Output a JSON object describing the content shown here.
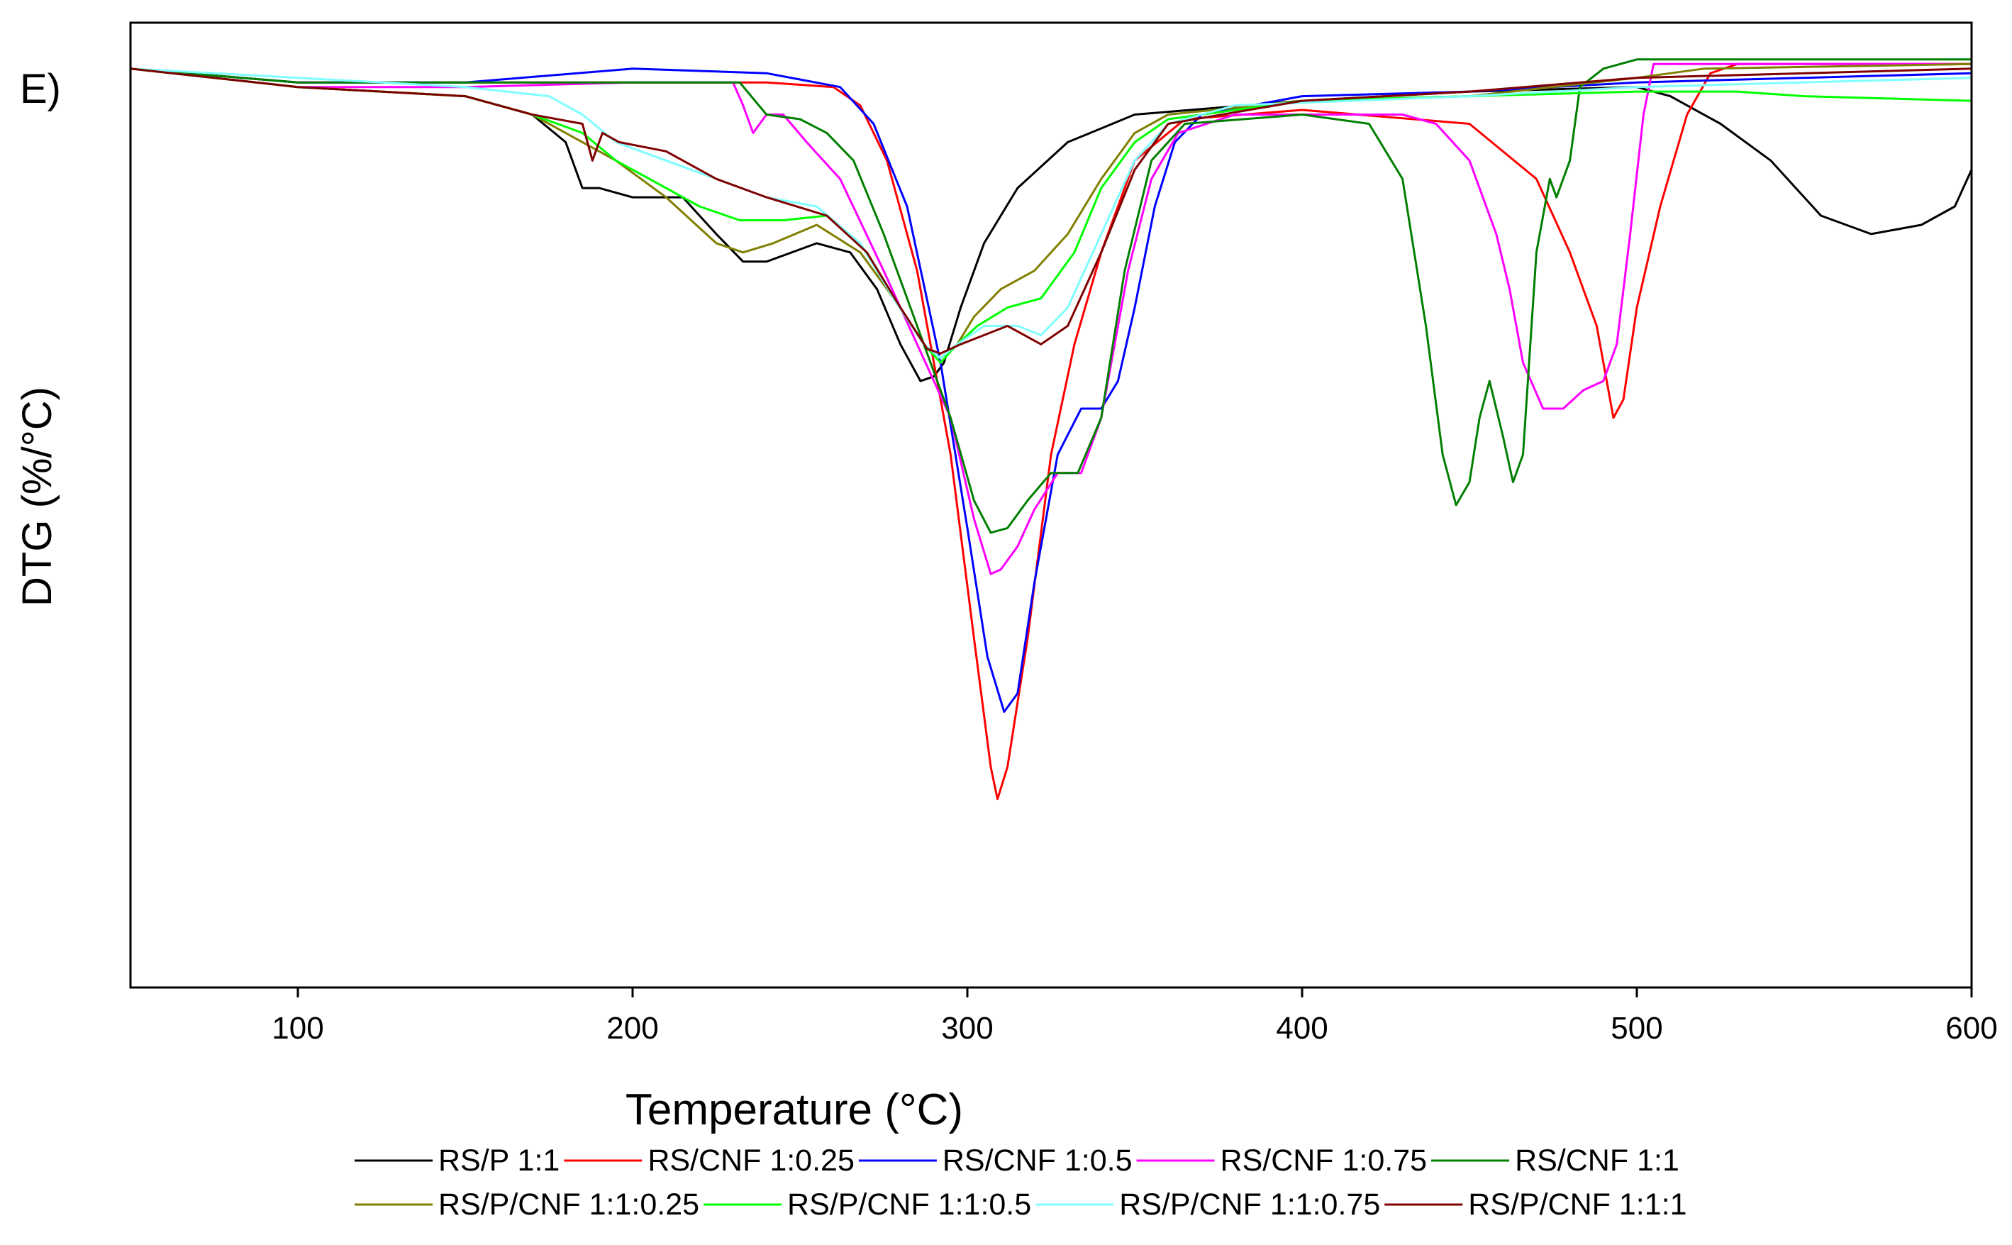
{
  "chart_data": {
    "type": "line",
    "panel_label": "E)",
    "title": "",
    "xlabel": "Temperature (°C)",
    "ylabel": "DTG (%/°C)",
    "xlim": [
      50,
      600
    ],
    "ylim": [
      -1.0,
      0.05
    ],
    "xticks": [
      100,
      200,
      300,
      400,
      500,
      600
    ],
    "y_tick_labels_shown": false,
    "grid": false,
    "legend_position": "bottom",
    "series": [
      {
        "name": "RS/P 1:1",
        "color": "#000000",
        "points": [
          [
            50,
            0
          ],
          [
            100,
            -0.02
          ],
          [
            150,
            -0.03
          ],
          [
            170,
            -0.05
          ],
          [
            180,
            -0.08
          ],
          [
            185,
            -0.13
          ],
          [
            190,
            -0.13
          ],
          [
            200,
            -0.14
          ],
          [
            215,
            -0.14
          ],
          [
            225,
            -0.18
          ],
          [
            233,
            -0.21
          ],
          [
            240,
            -0.21
          ],
          [
            255,
            -0.19
          ],
          [
            265,
            -0.2
          ],
          [
            273,
            -0.24
          ],
          [
            280,
            -0.3
          ],
          [
            286,
            -0.34
          ],
          [
            290,
            -0.335
          ],
          [
            293,
            -0.32
          ],
          [
            298,
            -0.26
          ],
          [
            305,
            -0.19
          ],
          [
            315,
            -0.13
          ],
          [
            330,
            -0.08
          ],
          [
            350,
            -0.05
          ],
          [
            400,
            -0.035
          ],
          [
            450,
            -0.025
          ],
          [
            500,
            -0.02
          ],
          [
            510,
            -0.03
          ],
          [
            525,
            -0.06
          ],
          [
            540,
            -0.1
          ],
          [
            555,
            -0.16
          ],
          [
            570,
            -0.18
          ],
          [
            585,
            -0.17
          ],
          [
            595,
            -0.15
          ],
          [
            600,
            -0.11
          ]
        ]
      },
      {
        "name": "RS/CNF 1:0.25",
        "color": "#ff0000",
        "points": [
          [
            50,
            0
          ],
          [
            100,
            -0.015
          ],
          [
            150,
            -0.015
          ],
          [
            200,
            -0.015
          ],
          [
            240,
            -0.015
          ],
          [
            260,
            -0.02
          ],
          [
            268,
            -0.04
          ],
          [
            276,
            -0.1
          ],
          [
            285,
            -0.22
          ],
          [
            295,
            -0.42
          ],
          [
            302,
            -0.62
          ],
          [
            307,
            -0.76
          ],
          [
            309,
            -0.795
          ],
          [
            312,
            -0.76
          ],
          [
            318,
            -0.62
          ],
          [
            325,
            -0.42
          ],
          [
            332,
            -0.3
          ],
          [
            340,
            -0.2
          ],
          [
            350,
            -0.1
          ],
          [
            365,
            -0.055
          ],
          [
            400,
            -0.045
          ],
          [
            450,
            -0.06
          ],
          [
            470,
            -0.12
          ],
          [
            480,
            -0.2
          ],
          [
            488,
            -0.28
          ],
          [
            493,
            -0.38
          ],
          [
            496,
            -0.36
          ],
          [
            500,
            -0.26
          ],
          [
            507,
            -0.15
          ],
          [
            515,
            -0.05
          ],
          [
            522,
            -0.005
          ],
          [
            530,
            0.005
          ],
          [
            600,
            0.005
          ]
        ]
      },
      {
        "name": "RS/CNF 1:0.5",
        "color": "#0000ff",
        "points": [
          [
            50,
            0
          ],
          [
            100,
            -0.015
          ],
          [
            150,
            -0.015
          ],
          [
            200,
            0
          ],
          [
            240,
            -0.005
          ],
          [
            262,
            -0.02
          ],
          [
            272,
            -0.06
          ],
          [
            282,
            -0.15
          ],
          [
            292,
            -0.32
          ],
          [
            300,
            -0.5
          ],
          [
            306,
            -0.64
          ],
          [
            311,
            -0.7
          ],
          [
            315,
            -0.68
          ],
          [
            320,
            -0.56
          ],
          [
            327,
            -0.42
          ],
          [
            334,
            -0.37
          ],
          [
            340,
            -0.37
          ],
          [
            345,
            -0.34
          ],
          [
            350,
            -0.26
          ],
          [
            356,
            -0.15
          ],
          [
            362,
            -0.08
          ],
          [
            370,
            -0.05
          ],
          [
            400,
            -0.03
          ],
          [
            450,
            -0.025
          ],
          [
            500,
            -0.015
          ],
          [
            550,
            -0.01
          ],
          [
            600,
            -0.005
          ]
        ]
      },
      {
        "name": "RS/CNF 1:0.75",
        "color": "#ff00ff",
        "points": [
          [
            50,
            0
          ],
          [
            100,
            -0.02
          ],
          [
            150,
            -0.02
          ],
          [
            200,
            -0.015
          ],
          [
            230,
            -0.015
          ],
          [
            233,
            -0.04
          ],
          [
            236,
            -0.07
          ],
          [
            240,
            -0.05
          ],
          [
            245,
            -0.05
          ],
          [
            252,
            -0.08
          ],
          [
            262,
            -0.12
          ],
          [
            275,
            -0.22
          ],
          [
            285,
            -0.3
          ],
          [
            295,
            -0.38
          ],
          [
            302,
            -0.49
          ],
          [
            307,
            -0.55
          ],
          [
            310,
            -0.545
          ],
          [
            315,
            -0.52
          ],
          [
            320,
            -0.48
          ],
          [
            327,
            -0.44
          ],
          [
            334,
            -0.44
          ],
          [
            340,
            -0.38
          ],
          [
            348,
            -0.22
          ],
          [
            355,
            -0.12
          ],
          [
            363,
            -0.07
          ],
          [
            380,
            -0.05
          ],
          [
            430,
            -0.05
          ],
          [
            440,
            -0.06
          ],
          [
            450,
            -0.1
          ],
          [
            458,
            -0.18
          ],
          [
            462,
            -0.24
          ],
          [
            466,
            -0.32
          ],
          [
            472,
            -0.37
          ],
          [
            478,
            -0.37
          ],
          [
            484,
            -0.35
          ],
          [
            490,
            -0.34
          ],
          [
            494,
            -0.3
          ],
          [
            498,
            -0.18
          ],
          [
            502,
            -0.05
          ],
          [
            505,
            0.005
          ],
          [
            550,
            0.005
          ],
          [
            600,
            0.005
          ]
        ]
      },
      {
        "name": "RS/CNF 1:1",
        "color": "#007f00",
        "points": [
          [
            50,
            0
          ],
          [
            100,
            -0.015
          ],
          [
            150,
            -0.015
          ],
          [
            200,
            -0.015
          ],
          [
            232,
            -0.015
          ],
          [
            240,
            -0.05
          ],
          [
            250,
            -0.055
          ],
          [
            258,
            -0.07
          ],
          [
            266,
            -0.1
          ],
          [
            275,
            -0.18
          ],
          [
            285,
            -0.28
          ],
          [
            295,
            -0.38
          ],
          [
            302,
            -0.47
          ],
          [
            307,
            -0.505
          ],
          [
            312,
            -0.5
          ],
          [
            318,
            -0.47
          ],
          [
            325,
            -0.44
          ],
          [
            333,
            -0.44
          ],
          [
            340,
            -0.38
          ],
          [
            347,
            -0.22
          ],
          [
            355,
            -0.1
          ],
          [
            365,
            -0.06
          ],
          [
            400,
            -0.05
          ],
          [
            420,
            -0.06
          ],
          [
            430,
            -0.12
          ],
          [
            437,
            -0.28
          ],
          [
            442,
            -0.42
          ],
          [
            446,
            -0.475
          ],
          [
            450,
            -0.45
          ],
          [
            453,
            -0.38
          ],
          [
            456,
            -0.34
          ],
          [
            460,
            -0.4
          ],
          [
            463,
            -0.45
          ],
          [
            466,
            -0.42
          ],
          [
            470,
            -0.2
          ],
          [
            474,
            -0.12
          ],
          [
            476,
            -0.14
          ],
          [
            480,
            -0.1
          ],
          [
            483,
            -0.02
          ],
          [
            490,
            0
          ],
          [
            500,
            0.01
          ],
          [
            520,
            0.01
          ],
          [
            600,
            0.01
          ]
        ]
      },
      {
        "name": "RS/P/CNF 1:1:0.25",
        "color": "#807f00",
        "points": [
          [
            50,
            0
          ],
          [
            100,
            -0.02
          ],
          [
            150,
            -0.03
          ],
          [
            170,
            -0.05
          ],
          [
            180,
            -0.07
          ],
          [
            195,
            -0.1
          ],
          [
            210,
            -0.14
          ],
          [
            225,
            -0.19
          ],
          [
            233,
            -0.2
          ],
          [
            242,
            -0.19
          ],
          [
            255,
            -0.17
          ],
          [
            268,
            -0.2
          ],
          [
            278,
            -0.25
          ],
          [
            287,
            -0.3
          ],
          [
            292,
            -0.315
          ],
          [
            297,
            -0.3
          ],
          [
            302,
            -0.27
          ],
          [
            310,
            -0.24
          ],
          [
            320,
            -0.22
          ],
          [
            330,
            -0.18
          ],
          [
            340,
            -0.12
          ],
          [
            350,
            -0.07
          ],
          [
            360,
            -0.05
          ],
          [
            400,
            -0.035
          ],
          [
            450,
            -0.03
          ],
          [
            500,
            -0.01
          ],
          [
            520,
            0
          ],
          [
            600,
            0.005
          ]
        ]
      },
      {
        "name": "RS/P/CNF 1:1:0.5",
        "color": "#00ff00",
        "points": [
          [
            50,
            0
          ],
          [
            100,
            -0.02
          ],
          [
            150,
            -0.03
          ],
          [
            170,
            -0.05
          ],
          [
            185,
            -0.07
          ],
          [
            195,
            -0.1
          ],
          [
            205,
            -0.12
          ],
          [
            220,
            -0.15
          ],
          [
            232,
            -0.165
          ],
          [
            245,
            -0.165
          ],
          [
            258,
            -0.16
          ],
          [
            268,
            -0.19
          ],
          [
            278,
            -0.25
          ],
          [
            287,
            -0.3
          ],
          [
            292,
            -0.32
          ],
          [
            297,
            -0.3
          ],
          [
            303,
            -0.28
          ],
          [
            312,
            -0.26
          ],
          [
            322,
            -0.25
          ],
          [
            332,
            -0.2
          ],
          [
            340,
            -0.13
          ],
          [
            350,
            -0.08
          ],
          [
            360,
            -0.055
          ],
          [
            400,
            -0.035
          ],
          [
            450,
            -0.03
          ],
          [
            500,
            -0.025
          ],
          [
            530,
            -0.025
          ],
          [
            550,
            -0.03
          ],
          [
            600,
            -0.035
          ]
        ]
      },
      {
        "name": "RS/P/CNF 1:1:0.75",
        "color": "#7fffff",
        "points": [
          [
            50,
            0
          ],
          [
            100,
            -0.01
          ],
          [
            150,
            -0.02
          ],
          [
            175,
            -0.03
          ],
          [
            185,
            -0.05
          ],
          [
            195,
            -0.08
          ],
          [
            210,
            -0.1
          ],
          [
            225,
            -0.12
          ],
          [
            240,
            -0.14
          ],
          [
            255,
            -0.15
          ],
          [
            268,
            -0.19
          ],
          [
            278,
            -0.25
          ],
          [
            287,
            -0.3
          ],
          [
            292,
            -0.315
          ],
          [
            297,
            -0.3
          ],
          [
            305,
            -0.28
          ],
          [
            315,
            -0.28
          ],
          [
            322,
            -0.29
          ],
          [
            330,
            -0.26
          ],
          [
            340,
            -0.18
          ],
          [
            350,
            -0.1
          ],
          [
            360,
            -0.06
          ],
          [
            380,
            -0.04
          ],
          [
            450,
            -0.03
          ],
          [
            500,
            -0.02
          ],
          [
            600,
            -0.01
          ]
        ]
      },
      {
        "name": "RS/P/CNF 1:1:1",
        "color": "#7f0000",
        "points": [
          [
            50,
            0
          ],
          [
            100,
            -0.02
          ],
          [
            150,
            -0.03
          ],
          [
            170,
            -0.05
          ],
          [
            185,
            -0.06
          ],
          [
            188,
            -0.1
          ],
          [
            191,
            -0.07
          ],
          [
            196,
            -0.08
          ],
          [
            210,
            -0.09
          ],
          [
            225,
            -0.12
          ],
          [
            240,
            -0.14
          ],
          [
            258,
            -0.16
          ],
          [
            270,
            -0.2
          ],
          [
            280,
            -0.26
          ],
          [
            288,
            -0.305
          ],
          [
            292,
            -0.31
          ],
          [
            298,
            -0.3
          ],
          [
            305,
            -0.29
          ],
          [
            312,
            -0.28
          ],
          [
            322,
            -0.3
          ],
          [
            330,
            -0.28
          ],
          [
            340,
            -0.2
          ],
          [
            350,
            -0.11
          ],
          [
            360,
            -0.06
          ],
          [
            400,
            -0.035
          ],
          [
            450,
            -0.025
          ],
          [
            500,
            -0.01
          ],
          [
            600,
            0
          ]
        ]
      }
    ]
  }
}
